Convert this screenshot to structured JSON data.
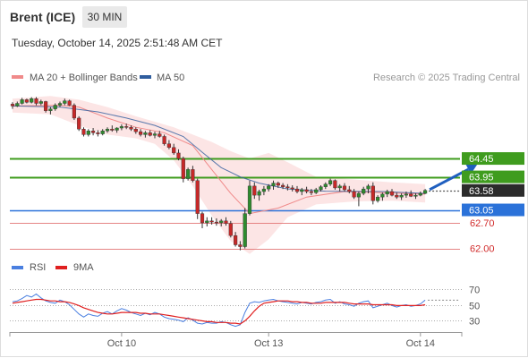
{
  "header": {
    "instrument": "Brent (ICE)",
    "timeframe": "30 MIN",
    "datetime": "Tuesday, October 14, 2025 2:51:48 AM CET"
  },
  "legend": {
    "items": [
      {
        "label": "MA 20 + Bollinger Bands",
        "color": "#f08a8a"
      },
      {
        "label": "MA 50",
        "color": "#2f5d9e"
      }
    ],
    "credit": "Research © 2025 Trading Central"
  },
  "rsi_legend": {
    "items": [
      {
        "label": "RSI",
        "color": "#4a7fe0"
      },
      {
        "label": "9MA",
        "color": "#e02020"
      }
    ]
  },
  "levels": [
    {
      "value": "64.45",
      "kind": "resistance",
      "color": "#3f9c1e"
    },
    {
      "value": "63.95",
      "kind": "resistance",
      "color": "#3f9c1e"
    },
    {
      "value": "63.58",
      "kind": "last",
      "color": "#2b2b2b"
    },
    {
      "value": "63.05",
      "kind": "pivot",
      "color": "#2b72d9"
    },
    {
      "value": "62.70",
      "kind": "support",
      "color": "#e07070"
    },
    {
      "value": "62.00",
      "kind": "support",
      "color": "#e07070"
    }
  ],
  "chart_data": [
    {
      "type": "candlestick",
      "title": "",
      "ylim": [
        61.82,
        66.45
      ],
      "x_ticks": [
        "Oct 10",
        "Oct 13",
        "Oct 14"
      ],
      "candles": [
        [
          65.93,
          65.98,
          65.8,
          65.88
        ],
        [
          65.88,
          66.0,
          65.85,
          65.95
        ],
        [
          65.95,
          66.1,
          65.92,
          66.05
        ],
        [
          66.05,
          66.08,
          65.95,
          65.98
        ],
        [
          65.98,
          66.12,
          65.95,
          66.08
        ],
        [
          66.08,
          66.12,
          65.9,
          65.95
        ],
        [
          65.95,
          66.05,
          65.9,
          66.0
        ],
        [
          66.0,
          66.02,
          65.7,
          65.75
        ],
        [
          65.75,
          65.85,
          65.65,
          65.8
        ],
        [
          65.8,
          65.95,
          65.75,
          65.9
        ],
        [
          65.9,
          66.0,
          65.85,
          65.95
        ],
        [
          65.95,
          66.08,
          65.9,
          66.02
        ],
        [
          66.02,
          66.05,
          65.88,
          65.9
        ],
        [
          65.9,
          65.95,
          65.5,
          65.55
        ],
        [
          65.55,
          65.6,
          65.2,
          65.25
        ],
        [
          65.25,
          65.3,
          65.05,
          65.1
        ],
        [
          65.1,
          65.25,
          65.05,
          65.2
        ],
        [
          65.2,
          65.28,
          65.08,
          65.15
        ],
        [
          65.15,
          65.22,
          65.05,
          65.12
        ],
        [
          65.12,
          65.25,
          65.08,
          65.2
        ],
        [
          65.2,
          65.3,
          65.15,
          65.25
        ],
        [
          65.25,
          65.35,
          65.18,
          65.22
        ],
        [
          65.22,
          65.3,
          65.15,
          65.28
        ],
        [
          65.28,
          65.38,
          65.22,
          65.32
        ],
        [
          65.32,
          65.4,
          65.25,
          65.3
        ],
        [
          65.3,
          65.35,
          65.2,
          65.25
        ],
        [
          65.25,
          65.3,
          65.12,
          65.18
        ],
        [
          65.18,
          65.25,
          65.05,
          65.1
        ],
        [
          65.1,
          65.2,
          65.02,
          65.15
        ],
        [
          65.15,
          65.22,
          65.05,
          65.08
        ],
        [
          65.08,
          65.18,
          65.0,
          65.12
        ],
        [
          65.12,
          65.2,
          65.02,
          65.05
        ],
        [
          65.05,
          65.1,
          64.8,
          64.85
        ],
        [
          64.85,
          64.95,
          64.7,
          64.75
        ],
        [
          64.75,
          64.85,
          64.55,
          64.6
        ],
        [
          64.6,
          64.7,
          64.4,
          64.45
        ],
        [
          64.45,
          64.5,
          63.8,
          63.9
        ],
        [
          63.9,
          64.2,
          63.85,
          64.15
        ],
        [
          64.15,
          64.25,
          63.8,
          63.85
        ],
        [
          63.85,
          63.9,
          62.8,
          62.95
        ],
        [
          62.95,
          63.0,
          62.55,
          62.7
        ],
        [
          62.7,
          62.85,
          62.6,
          62.75
        ],
        [
          62.75,
          62.85,
          62.65,
          62.72
        ],
        [
          62.72,
          62.82,
          62.62,
          62.7
        ],
        [
          62.7,
          62.8,
          62.6,
          62.75
        ],
        [
          62.75,
          62.85,
          62.62,
          62.68
        ],
        [
          62.68,
          62.75,
          62.3,
          62.35
        ],
        [
          62.35,
          62.45,
          62.05,
          62.1
        ],
        [
          62.1,
          62.2,
          61.95,
          62.05
        ],
        [
          62.05,
          63.1,
          62.0,
          62.95
        ],
        [
          62.95,
          63.85,
          62.9,
          63.7
        ],
        [
          63.7,
          63.8,
          63.35,
          63.45
        ],
        [
          63.45,
          63.6,
          63.3,
          63.55
        ],
        [
          63.55,
          63.7,
          63.45,
          63.62
        ],
        [
          63.62,
          63.75,
          63.55,
          63.7
        ],
        [
          63.7,
          63.85,
          63.6,
          63.78
        ],
        [
          63.78,
          63.82,
          63.65,
          63.72
        ],
        [
          63.72,
          63.78,
          63.62,
          63.68
        ],
        [
          63.68,
          63.75,
          63.58,
          63.65
        ],
        [
          63.65,
          63.72,
          63.55,
          63.62
        ],
        [
          63.62,
          63.7,
          63.5,
          63.55
        ],
        [
          63.55,
          63.65,
          63.45,
          63.6
        ],
        [
          63.6,
          63.68,
          63.5,
          63.55
        ],
        [
          63.55,
          63.62,
          63.45,
          63.52
        ],
        [
          63.52,
          63.65,
          63.48,
          63.6
        ],
        [
          63.6,
          63.72,
          63.55,
          63.68
        ],
        [
          63.68,
          63.8,
          63.62,
          63.75
        ],
        [
          63.75,
          63.9,
          63.7,
          63.85
        ],
        [
          63.85,
          63.88,
          63.6,
          63.65
        ],
        [
          63.65,
          63.75,
          63.55,
          63.7
        ],
        [
          63.7,
          63.78,
          63.55,
          63.6
        ],
        [
          63.6,
          63.7,
          63.5,
          63.55
        ],
        [
          63.55,
          63.62,
          63.35,
          63.4
        ],
        [
          63.4,
          63.55,
          63.15,
          63.5
        ],
        [
          63.5,
          63.68,
          63.45,
          63.62
        ],
        [
          63.62,
          63.75,
          63.5,
          63.7
        ],
        [
          63.7,
          63.8,
          63.2,
          63.3
        ],
        [
          63.3,
          63.45,
          63.25,
          63.4
        ],
        [
          63.4,
          63.52,
          63.3,
          63.48
        ],
        [
          63.48,
          63.6,
          63.4,
          63.55
        ],
        [
          63.55,
          63.62,
          63.42,
          63.45
        ],
        [
          63.45,
          63.52,
          63.35,
          63.4
        ],
        [
          63.4,
          63.5,
          63.32,
          63.45
        ],
        [
          63.45,
          63.55,
          63.38,
          63.48
        ],
        [
          63.48,
          63.58,
          63.4,
          63.42
        ],
        [
          63.42,
          63.5,
          63.35,
          63.45
        ],
        [
          63.45,
          63.55,
          63.42,
          63.5
        ],
        [
          63.5,
          63.62,
          63.48,
          63.58
        ]
      ],
      "ma20": [
        [
          0,
          65.88
        ],
        [
          10,
          65.9
        ],
        [
          14,
          65.85
        ],
        [
          20,
          65.55
        ],
        [
          26,
          65.3
        ],
        [
          32,
          65.15
        ],
        [
          38,
          64.8
        ],
        [
          42,
          64.15
        ],
        [
          46,
          63.5
        ],
        [
          50,
          62.95
        ],
        [
          56,
          63.1
        ],
        [
          62,
          63.4
        ],
        [
          70,
          63.55
        ],
        [
          78,
          63.52
        ],
        [
          87,
          63.48
        ]
      ],
      "ma50": [
        [
          0,
          65.88
        ],
        [
          10,
          65.85
        ],
        [
          18,
          65.72
        ],
        [
          24,
          65.55
        ],
        [
          30,
          65.35
        ],
        [
          36,
          65.05
        ],
        [
          40,
          64.62
        ],
        [
          44,
          64.2
        ],
        [
          48,
          63.95
        ],
        [
          52,
          63.78
        ],
        [
          58,
          63.62
        ],
        [
          66,
          63.56
        ],
        [
          78,
          63.55
        ],
        [
          87,
          63.5
        ]
      ],
      "bb_upper": [
        [
          0,
          66.08
        ],
        [
          8,
          66.15
        ],
        [
          14,
          66.05
        ],
        [
          20,
          65.85
        ],
        [
          26,
          65.6
        ],
        [
          30,
          65.45
        ],
        [
          34,
          65.3
        ],
        [
          38,
          65.1
        ],
        [
          42,
          64.9
        ],
        [
          46,
          64.65
        ],
        [
          50,
          64.45
        ],
        [
          54,
          64.6
        ],
        [
          58,
          64.35
        ],
        [
          64,
          63.95
        ],
        [
          72,
          63.88
        ],
        [
          80,
          63.8
        ],
        [
          87,
          63.75
        ]
      ],
      "bb_lower": [
        [
          0,
          65.7
        ],
        [
          8,
          65.65
        ],
        [
          14,
          65.35
        ],
        [
          20,
          65.1
        ],
        [
          26,
          65.0
        ],
        [
          30,
          64.85
        ],
        [
          34,
          64.4
        ],
        [
          38,
          63.7
        ],
        [
          42,
          62.9
        ],
        [
          46,
          62.2
        ],
        [
          50,
          61.85
        ],
        [
          54,
          62.25
        ],
        [
          58,
          62.85
        ],
        [
          64,
          63.2
        ],
        [
          72,
          63.28
        ],
        [
          80,
          63.3
        ],
        [
          87,
          63.25
        ]
      ],
      "forecast_arrow": {
        "from": [
          87,
          63.58
        ],
        "to": [
          97,
          64.28
        ]
      }
    },
    {
      "type": "line",
      "title": "RSI",
      "ylim": [
        18,
        82
      ],
      "y_ticks": [
        "70",
        "50",
        "30"
      ],
      "series": [
        {
          "name": "RSI",
          "values": [
            54,
            55,
            58,
            62,
            60,
            64,
            59,
            55,
            53,
            52,
            56,
            54,
            50,
            44,
            38,
            34,
            38,
            36,
            35,
            39,
            41,
            38,
            42,
            45,
            43,
            40,
            38,
            36,
            39,
            37,
            40,
            38,
            34,
            32,
            31,
            30,
            28,
            33,
            30,
            26,
            25,
            27,
            26,
            26,
            28,
            27,
            24,
            22,
            24,
            40,
            52,
            54,
            53,
            55,
            56,
            57,
            55,
            54,
            53,
            52,
            51,
            53,
            52,
            51,
            53,
            54,
            56,
            57,
            52,
            54,
            51,
            50,
            48,
            52,
            54,
            55,
            46,
            48,
            50,
            52,
            49,
            47,
            49,
            50,
            48,
            49,
            51,
            56
          ]
        },
        {
          "name": "9MA",
          "values": [
            52,
            53,
            54,
            55,
            56,
            57,
            57,
            56,
            55,
            55,
            54,
            54,
            53,
            51,
            49,
            46,
            44,
            42,
            40,
            39,
            38,
            38,
            39,
            40,
            40,
            40,
            40,
            39,
            39,
            38,
            38,
            38,
            37,
            36,
            35,
            34,
            33,
            32,
            31,
            30,
            29,
            28,
            28,
            27,
            27,
            27,
            26,
            26,
            25,
            29,
            35,
            42,
            48,
            52,
            53,
            54,
            55,
            55,
            55,
            54,
            54,
            53,
            53,
            52,
            52,
            52,
            53,
            53,
            53,
            53,
            53,
            52,
            51,
            51,
            51,
            51,
            50,
            50,
            50,
            50,
            50,
            49,
            49,
            49,
            49,
            49,
            49,
            50
          ]
        }
      ]
    }
  ]
}
